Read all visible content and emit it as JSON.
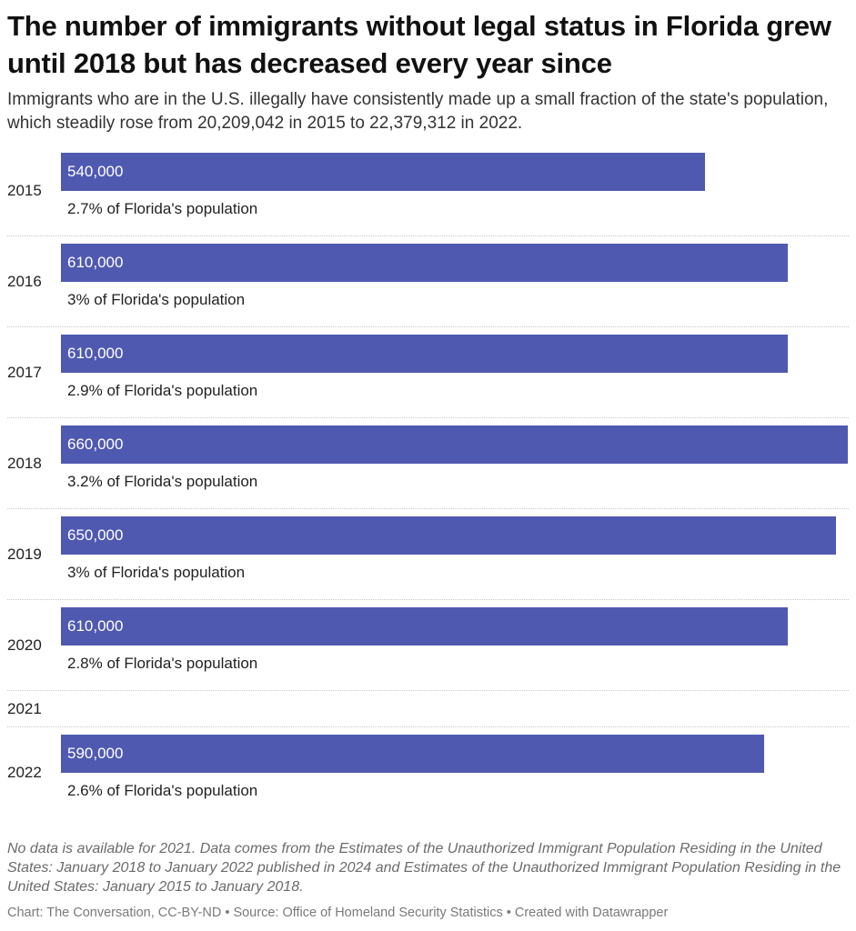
{
  "header": {
    "title": "The number of immigrants without legal status in Florida grew until 2018 but has decreased every year since",
    "subtitle": "Immigrants who are in the U.S. illegally have consistently made up a small fraction of the state's population, which steadily rose from 20,209,042 in 2015 to 22,379,312 in 2022."
  },
  "chart_data": {
    "type": "bar",
    "orientation": "horizontal",
    "title": "The number of immigrants without legal status in Florida grew until 2018 but has decreased every year since",
    "subtitle": "Immigrants who are in the U.S. illegally have consistently made up a small fraction of the state's population, which steadily rose from 20,209,042 in 2015 to 22,379,312 in 2022.",
    "categories": [
      "2015",
      "2016",
      "2017",
      "2018",
      "2019",
      "2020",
      "2021",
      "2022"
    ],
    "values": [
      540000,
      610000,
      610000,
      660000,
      650000,
      610000,
      null,
      590000
    ],
    "value_labels": [
      "540,000",
      "610,000",
      "610,000",
      "660,000",
      "650,000",
      "610,000",
      "",
      "590,000"
    ],
    "share_labels": [
      "2.7% of Florida's population",
      "3% of Florida's population",
      "2.9% of Florida's population",
      "3.2% of Florida's population",
      "3% of Florida's population",
      "2.8% of Florida's population",
      "",
      "2.6% of Florida's population"
    ],
    "xlim": [
      0,
      660000
    ],
    "grid": false,
    "legend": "none",
    "bar_color": "#5059b0"
  },
  "notes": "No data is available for 2021. Data comes from the Estimates of the Unauthorized Immigrant Population Residing in the United States: January 2018 to January 2022 published in 2024 and Estimates of the Unauthorized Immigrant Population Residing in the United States: January 2015 to January 2018.",
  "footer": "Chart: The Conversation, CC-BY-ND • Source: Office of Homeland Security Statistics • Created with Datawrapper"
}
